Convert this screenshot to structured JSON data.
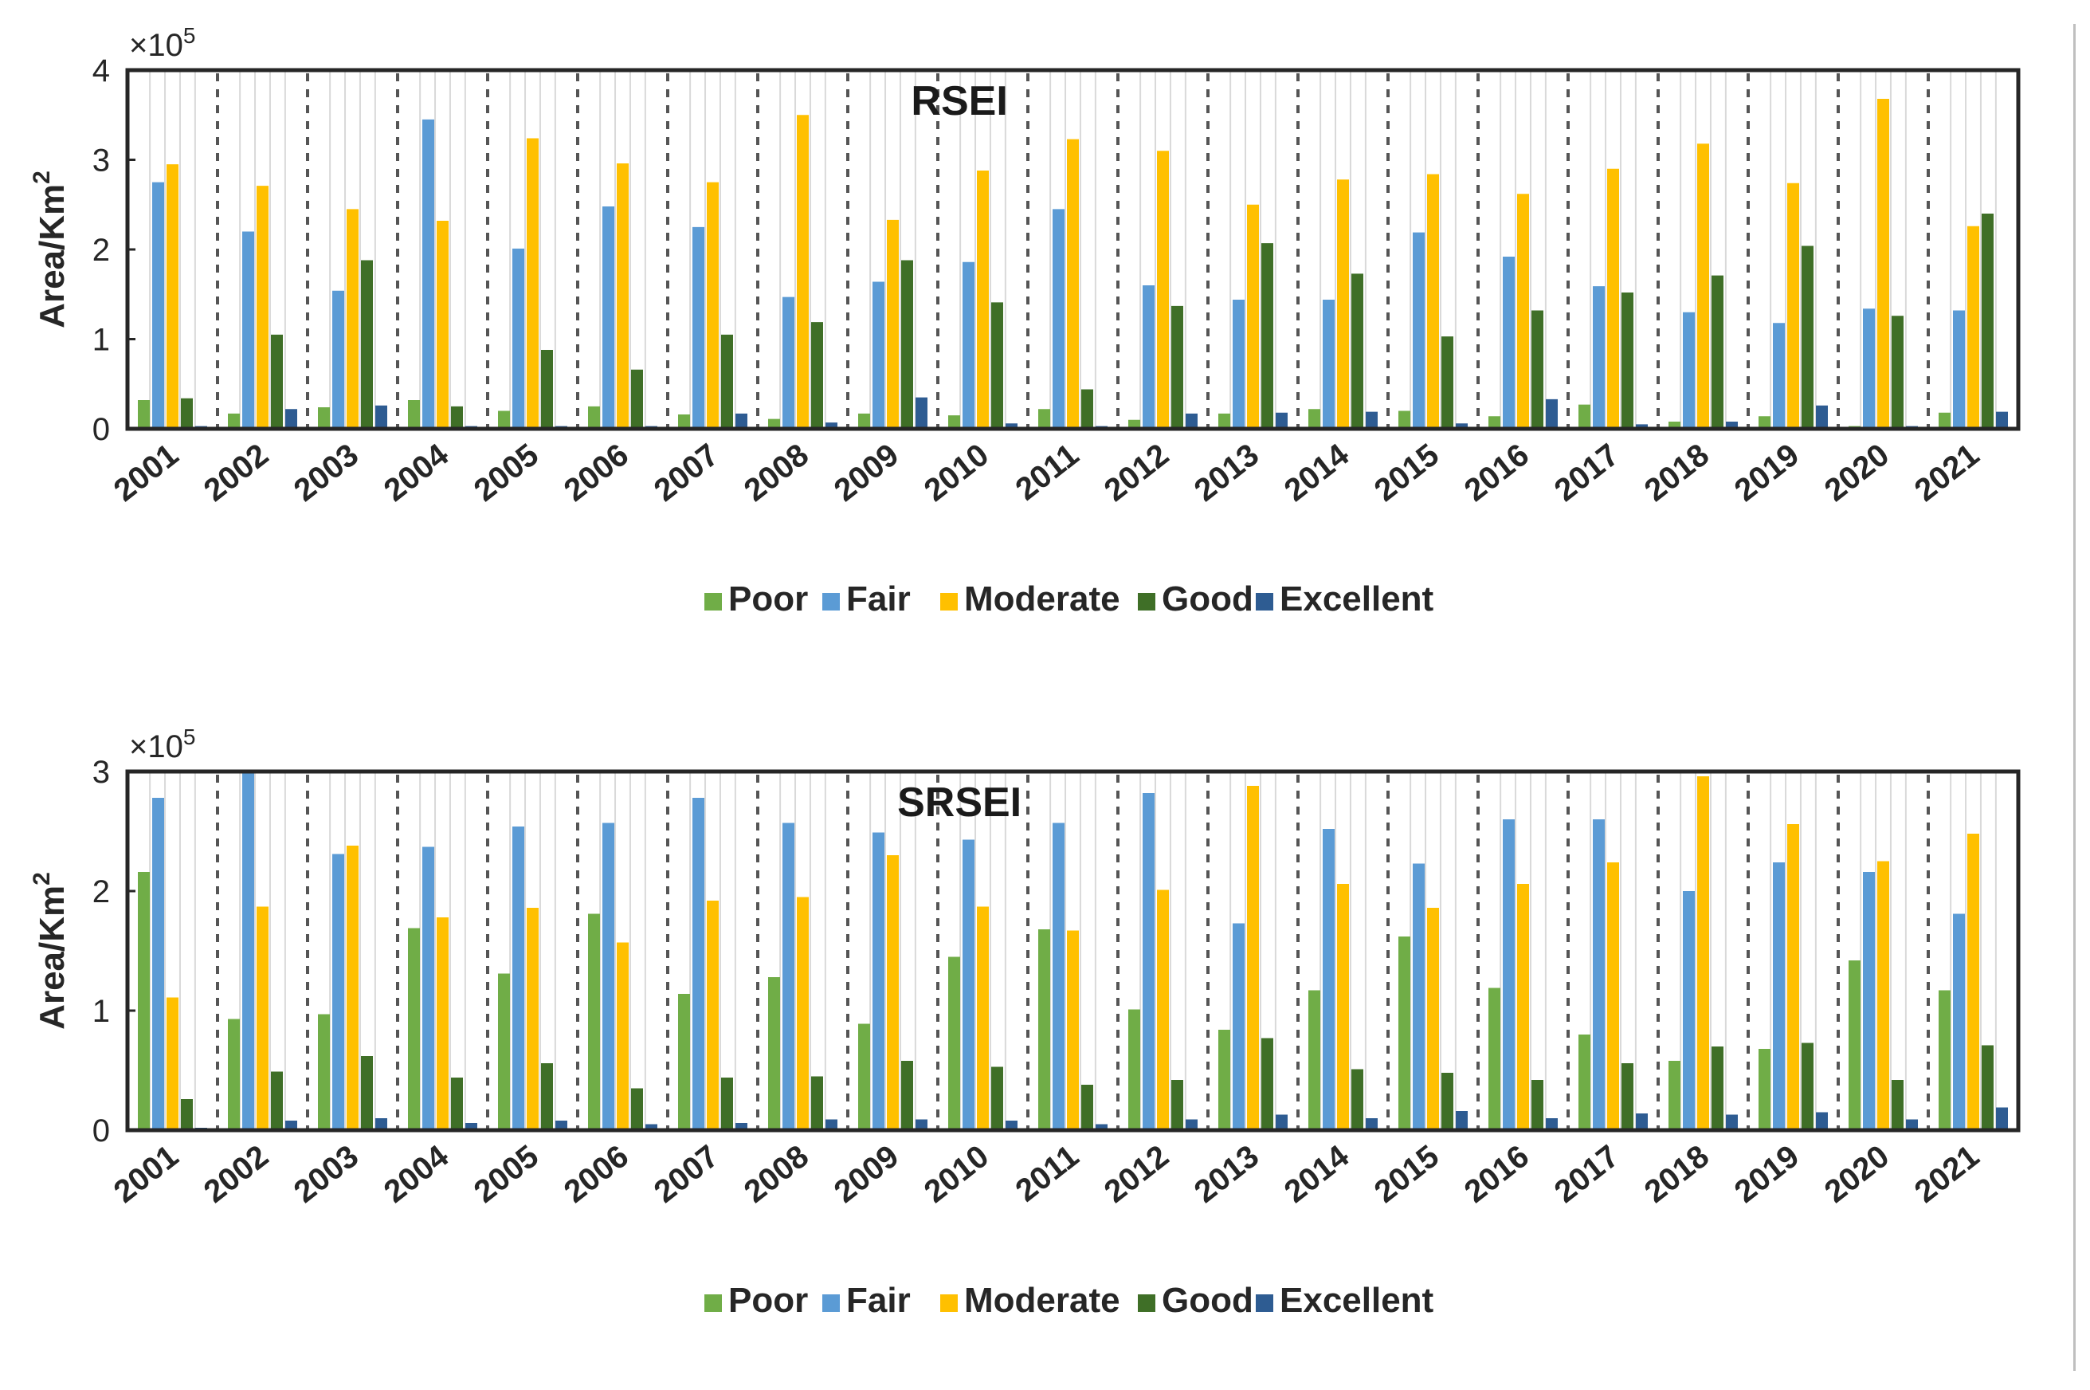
{
  "colors": {
    "Poor": "#70ad47",
    "Fair": "#5b9bd5",
    "Moderate": "#ffc000",
    "Good": "#3f6f27",
    "Excellent": "#2e5c92"
  },
  "chart_data": [
    {
      "type": "bar",
      "title": "RSEI",
      "xlabel": "",
      "ylabel": "Area/Km",
      "ylabel_sup": "2",
      "multiplier": "×10",
      "multiplier_exp": "5",
      "ylim": [
        0,
        4
      ],
      "yticks": [
        "0",
        "1",
        "2",
        "3",
        "4"
      ],
      "categories": [
        "2001",
        "2002",
        "2003",
        "2004",
        "2005",
        "2006",
        "2007",
        "2008",
        "2009",
        "2010",
        "2011",
        "2012",
        "2013",
        "2014",
        "2015",
        "2016",
        "2017",
        "2018",
        "2019",
        "2020",
        "2021"
      ],
      "series": [
        {
          "name": "Poor",
          "values": [
            0.32,
            0.17,
            0.24,
            0.32,
            0.2,
            0.25,
            0.16,
            0.11,
            0.17,
            0.15,
            0.22,
            0.1,
            0.17,
            0.22,
            0.2,
            0.14,
            0.27,
            0.08,
            0.14,
            0.03,
            0.18
          ]
        },
        {
          "name": "Fair",
          "values": [
            2.75,
            2.2,
            1.54,
            3.45,
            2.01,
            2.48,
            2.25,
            1.47,
            1.64,
            1.86,
            2.45,
            1.6,
            1.44,
            1.44,
            2.19,
            1.92,
            1.59,
            1.3,
            1.18,
            1.34,
            1.32
          ]
        },
        {
          "name": "Moderate",
          "values": [
            2.95,
            2.71,
            2.45,
            2.32,
            3.24,
            2.96,
            2.75,
            3.5,
            2.33,
            2.88,
            3.23,
            3.1,
            2.5,
            2.78,
            2.84,
            2.62,
            2.9,
            3.18,
            2.74,
            3.68,
            2.26
          ]
        },
        {
          "name": "Good",
          "values": [
            0.34,
            1.05,
            1.88,
            0.25,
            0.88,
            0.66,
            1.05,
            1.19,
            1.88,
            1.41,
            0.44,
            1.37,
            2.07,
            1.73,
            1.03,
            1.32,
            1.52,
            1.71,
            2.04,
            1.26,
            2.4
          ]
        },
        {
          "name": "Excellent",
          "values": [
            0.03,
            0.22,
            0.26,
            0.03,
            0.03,
            0.03,
            0.17,
            0.07,
            0.35,
            0.06,
            0.03,
            0.17,
            0.18,
            0.19,
            0.06,
            0.33,
            0.05,
            0.08,
            0.26,
            0.03,
            0.19
          ]
        }
      ],
      "legend": [
        "Poor",
        "Fair",
        "Moderate",
        "Good",
        "Excellent"
      ],
      "legend_position": "bottom-center"
    },
    {
      "type": "bar",
      "title": "SRSEI",
      "xlabel": "",
      "ylabel": "Area/Km",
      "ylabel_sup": "2",
      "multiplier": "×10",
      "multiplier_exp": "5",
      "ylim": [
        0,
        3
      ],
      "yticks": [
        "0",
        "1",
        "2",
        "3"
      ],
      "categories": [
        "2001",
        "2002",
        "2003",
        "2004",
        "2005",
        "2006",
        "2007",
        "2008",
        "2009",
        "2010",
        "2011",
        "2012",
        "2013",
        "2014",
        "2015",
        "2016",
        "2017",
        "2018",
        "2019",
        "2020",
        "2021"
      ],
      "series": [
        {
          "name": "Poor",
          "values": [
            2.16,
            0.93,
            0.97,
            1.69,
            1.31,
            1.81,
            1.14,
            1.28,
            0.89,
            1.45,
            1.68,
            1.01,
            0.84,
            1.17,
            1.62,
            1.19,
            0.8,
            0.58,
            0.68,
            1.42,
            1.17
          ]
        },
        {
          "name": "Fair",
          "values": [
            2.78,
            3.0,
            2.31,
            2.37,
            2.54,
            2.57,
            2.78,
            2.57,
            2.49,
            2.43,
            2.57,
            2.82,
            1.73,
            2.52,
            2.23,
            2.6,
            2.6,
            2.0,
            2.24,
            2.16,
            1.81
          ]
        },
        {
          "name": "Moderate",
          "values": [
            1.11,
            1.87,
            2.38,
            1.78,
            1.86,
            1.57,
            1.92,
            1.95,
            2.3,
            1.87,
            1.67,
            2.01,
            2.88,
            2.06,
            1.86,
            2.06,
            2.24,
            2.96,
            2.56,
            2.25,
            2.48
          ]
        },
        {
          "name": "Good",
          "values": [
            0.26,
            0.49,
            0.62,
            0.44,
            0.56,
            0.35,
            0.44,
            0.45,
            0.58,
            0.53,
            0.38,
            0.42,
            0.77,
            0.51,
            0.48,
            0.42,
            0.56,
            0.7,
            0.73,
            0.42,
            0.71
          ]
        },
        {
          "name": "Excellent",
          "values": [
            0.02,
            0.08,
            0.1,
            0.06,
            0.08,
            0.05,
            0.06,
            0.09,
            0.09,
            0.08,
            0.05,
            0.09,
            0.13,
            0.1,
            0.16,
            0.1,
            0.14,
            0.13,
            0.15,
            0.09,
            0.19
          ]
        }
      ],
      "legend": [
        "Poor",
        "Fair",
        "Moderate",
        "Good",
        "Excellent"
      ],
      "legend_position": "bottom-center"
    }
  ]
}
